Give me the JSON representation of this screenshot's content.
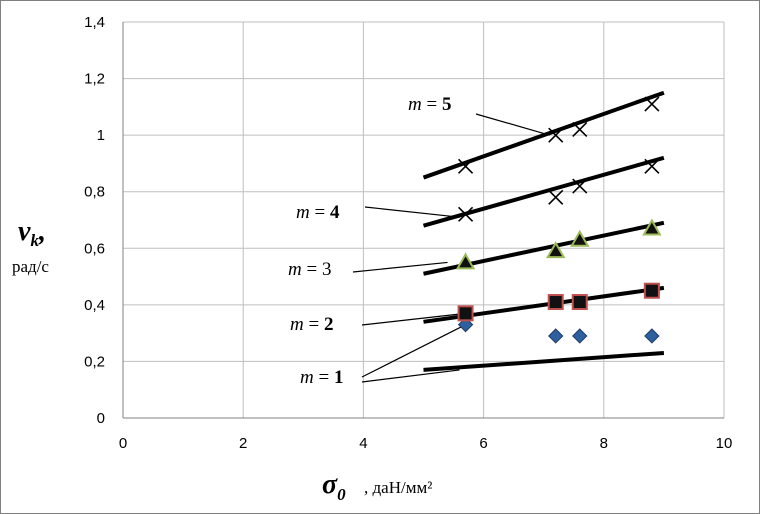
{
  "chart_data": {
    "type": "scatter",
    "xlim": [
      0,
      10
    ],
    "ylim": [
      0,
      1.4
    ],
    "x_ticks": [
      "0",
      "2",
      "4",
      "6",
      "8",
      "10"
    ],
    "y_ticks": [
      "0",
      "0,2",
      "0,4",
      "0,6",
      "0,8",
      "1",
      "1,2",
      "1,4"
    ],
    "grid": true,
    "y_axis_label": {
      "symbol": "ν",
      "subscript": "k",
      "suffix": ",",
      "unit": "рад/с"
    },
    "x_axis_label": {
      "symbol": "σ",
      "subscript": "0",
      "unit": ", даН/мм²"
    },
    "series": [
      {
        "name": "m = 1",
        "marker": "diamond",
        "color": "#2e5f9e",
        "points": [
          [
            5.7,
            0.33
          ],
          [
            7.2,
            0.29
          ],
          [
            7.6,
            0.29
          ],
          [
            8.8,
            0.29
          ]
        ],
        "fit": [
          [
            5.0,
            0.17
          ],
          [
            9.0,
            0.23
          ]
        ]
      },
      {
        "name": "m = 2",
        "marker": "square",
        "color": "#c0504d",
        "points": [
          [
            5.7,
            0.37
          ],
          [
            7.2,
            0.41
          ],
          [
            7.6,
            0.41
          ],
          [
            8.8,
            0.45
          ]
        ],
        "fit": [
          [
            5.0,
            0.34
          ],
          [
            9.0,
            0.46
          ]
        ]
      },
      {
        "name": "m = 3",
        "marker": "triangle",
        "color": "#9bbb59",
        "points": [
          [
            5.7,
            0.55
          ],
          [
            7.2,
            0.59
          ],
          [
            7.6,
            0.63
          ],
          [
            8.8,
            0.67
          ]
        ],
        "fit": [
          [
            5.0,
            0.51
          ],
          [
            9.0,
            0.69
          ]
        ]
      },
      {
        "name": "m = 4",
        "marker": "x",
        "color": "#000000",
        "points": [
          [
            5.7,
            0.72
          ],
          [
            7.2,
            0.78
          ],
          [
            7.6,
            0.82
          ],
          [
            8.8,
            0.89
          ]
        ],
        "fit": [
          [
            5.0,
            0.68
          ],
          [
            9.0,
            0.92
          ]
        ]
      },
      {
        "name": "m = 5",
        "marker": "x",
        "color": "#000000",
        "points": [
          [
            5.7,
            0.89
          ],
          [
            7.2,
            1.0
          ],
          [
            7.6,
            1.02
          ],
          [
            8.8,
            1.11
          ]
        ],
        "fit": [
          [
            5.0,
            0.85
          ],
          [
            9.0,
            1.15
          ]
        ]
      }
    ],
    "annotations": [
      {
        "series": 4,
        "var": "m",
        "eq": " = ",
        "num": "5",
        "bold": true,
        "target": [
          7.1,
          1.0
        ]
      },
      {
        "series": 3,
        "var": "m",
        "eq": " = ",
        "num": "4",
        "bold": true,
        "target": [
          5.6,
          0.71
        ]
      },
      {
        "series": 2,
        "var": "m",
        "eq": " = ",
        "num": "3",
        "bold": false,
        "target": [
          5.4,
          0.55
        ]
      },
      {
        "series": 1,
        "var": "m",
        "eq": " = ",
        "num": "2",
        "bold": true,
        "target": [
          5.7,
          0.37
        ]
      },
      {
        "series": 0,
        "var": "m",
        "eq": " = ",
        "num": "1",
        "bold": true,
        "target": [
          5.6,
          0.17
        ]
      }
    ]
  }
}
